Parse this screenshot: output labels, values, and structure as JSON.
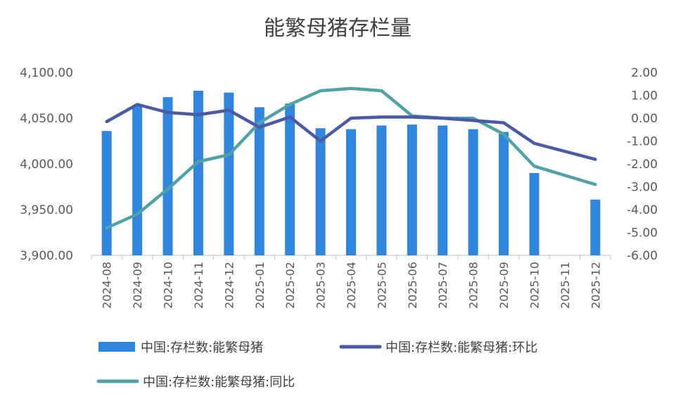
{
  "chart_data": {
    "type": "bar",
    "title": "能繁母猪存栏量",
    "categories": [
      "2024-08",
      "2024-09",
      "2024-10",
      "2024-11",
      "2024-12",
      "2025-01",
      "2025-02",
      "2025-03",
      "2025-04",
      "2025-05",
      "2025-06",
      "2025-07",
      "2025-08",
      "2025-09",
      "2025-10",
      "2025-11",
      "2025-12"
    ],
    "y_left": {
      "range": [
        3900,
        4100
      ],
      "ticks": [
        "3,900.00",
        "3,950.00",
        "4,000.00",
        "4,050.00",
        "4,100.00"
      ],
      "tick_values": [
        3900,
        3950,
        4000,
        4050,
        4100
      ]
    },
    "y_right": {
      "range": [
        -6,
        2
      ],
      "ticks": [
        "-6.00",
        "-5.00",
        "-4.00",
        "-3.00",
        "-2.00",
        "-1.00",
        "0.00",
        "1.00",
        "2.00"
      ],
      "tick_values": [
        -6,
        -5,
        -4,
        -3,
        -2,
        -1,
        0,
        1,
        2
      ]
    },
    "series": [
      {
        "name": "中国:存栏数:能繁母猪",
        "kind": "bar",
        "axis": "left",
        "color": "#2e86de",
        "values": [
          4036,
          4064,
          4073,
          4080,
          4078,
          4062,
          4066,
          4039,
          4038,
          4042,
          4043,
          4042,
          4038,
          4035,
          3990,
          null,
          3961
        ]
      },
      {
        "name": "中国:存栏数:能繁母猪:环比",
        "kind": "line",
        "axis": "right",
        "color": "#4a5aa8",
        "values": [
          -0.15,
          0.6,
          0.25,
          0.15,
          0.35,
          -0.4,
          0.05,
          -1.0,
          0.0,
          0.05,
          0.05,
          0.0,
          -0.1,
          -0.2,
          -1.1,
          -1.45,
          -1.8
        ]
      },
      {
        "name": "中国:存栏数:能繁母猪:同比",
        "kind": "line",
        "axis": "right",
        "color": "#4fa3a8",
        "values": [
          -4.8,
          -4.2,
          -3.1,
          -1.9,
          -1.6,
          -0.2,
          0.6,
          1.2,
          1.3,
          1.2,
          0.1,
          0.0,
          0.0,
          -0.7,
          -2.1,
          -2.5,
          -2.9
        ]
      }
    ],
    "legend_position": "bottom",
    "grid": false
  }
}
